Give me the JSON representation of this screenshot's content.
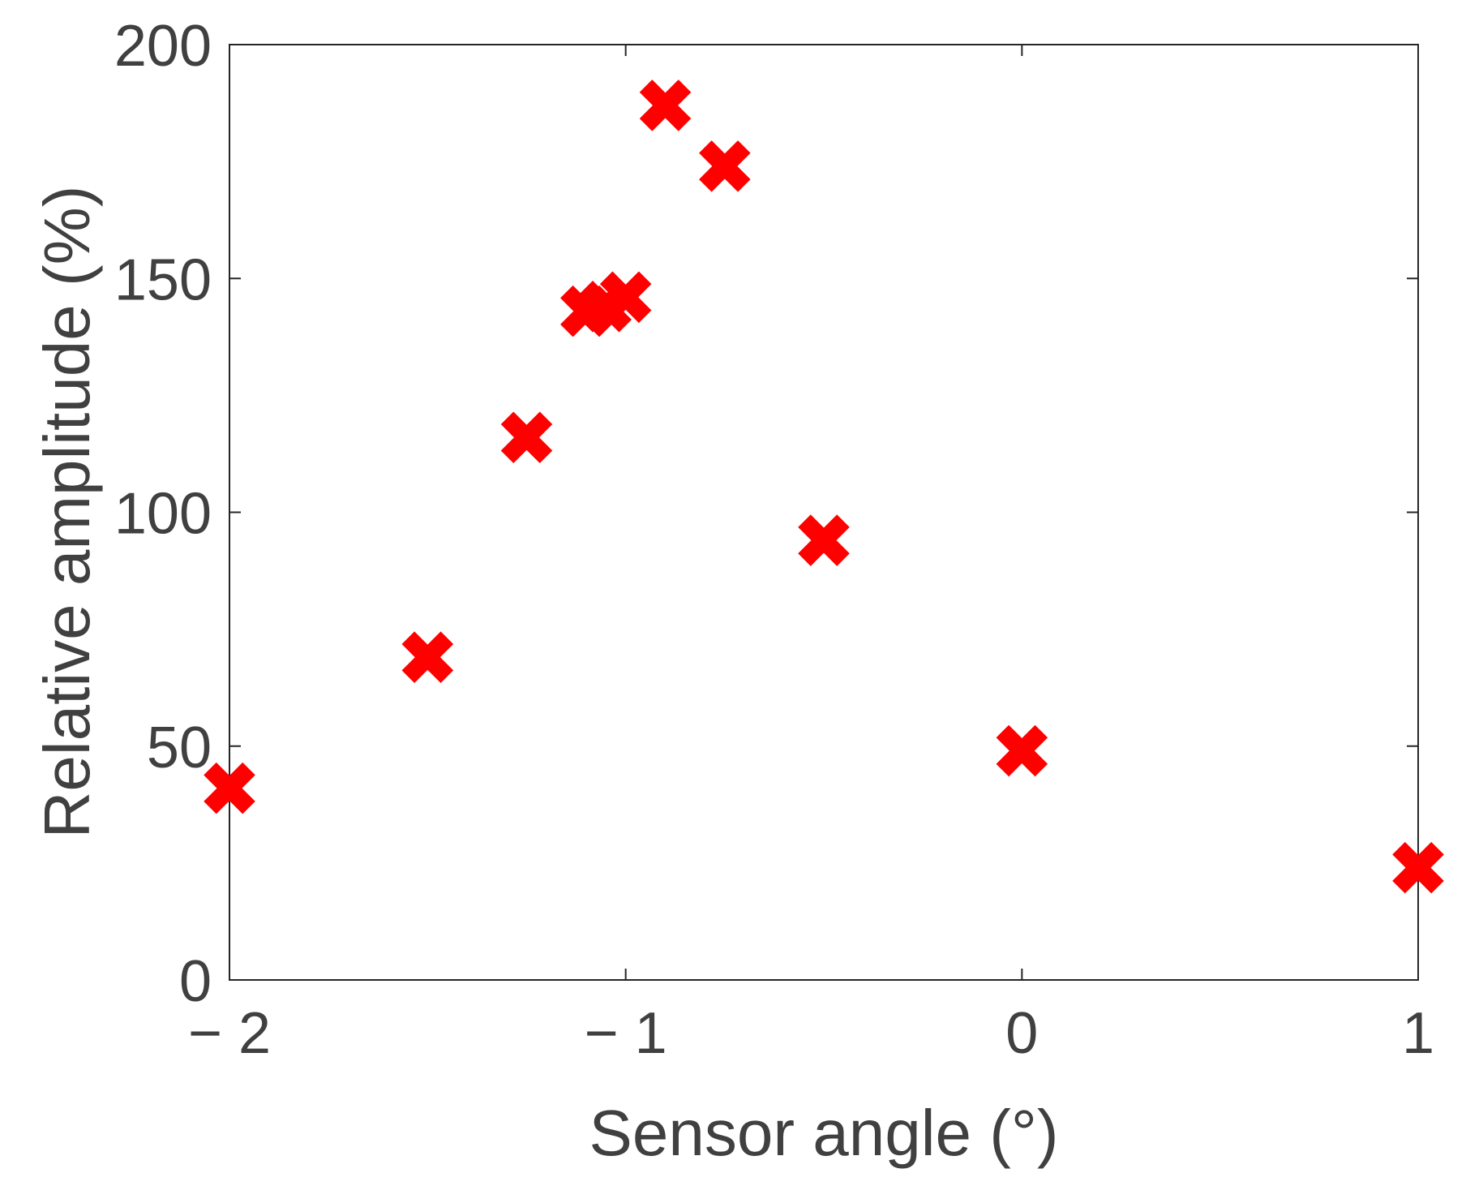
{
  "chart_data": {
    "type": "scatter",
    "title": "",
    "xlabel": "Sensor angle (°)",
    "ylabel": "Relative amplitude (%)",
    "xlim": [
      -2,
      1
    ],
    "ylim": [
      0,
      200
    ],
    "xticks": [
      -2,
      -1,
      0,
      1
    ],
    "yticks": [
      0,
      50,
      100,
      150,
      200
    ],
    "x_tick_labels": [
      "− 2",
      "− 1",
      "0",
      "1"
    ],
    "y_tick_labels": [
      "0",
      "50",
      "100",
      "150",
      "200"
    ],
    "grid": false,
    "marker": "x",
    "marker_color": "#ff0000",
    "series": [
      {
        "x": [
          -2.0,
          -1.5,
          -1.25,
          -1.1,
          -1.05,
          -1.0,
          -0.9,
          -0.75,
          -0.5,
          0.0,
          1.0
        ],
        "y": [
          41,
          69,
          116,
          143,
          144,
          146,
          187,
          174,
          94,
          49,
          24
        ]
      }
    ]
  }
}
